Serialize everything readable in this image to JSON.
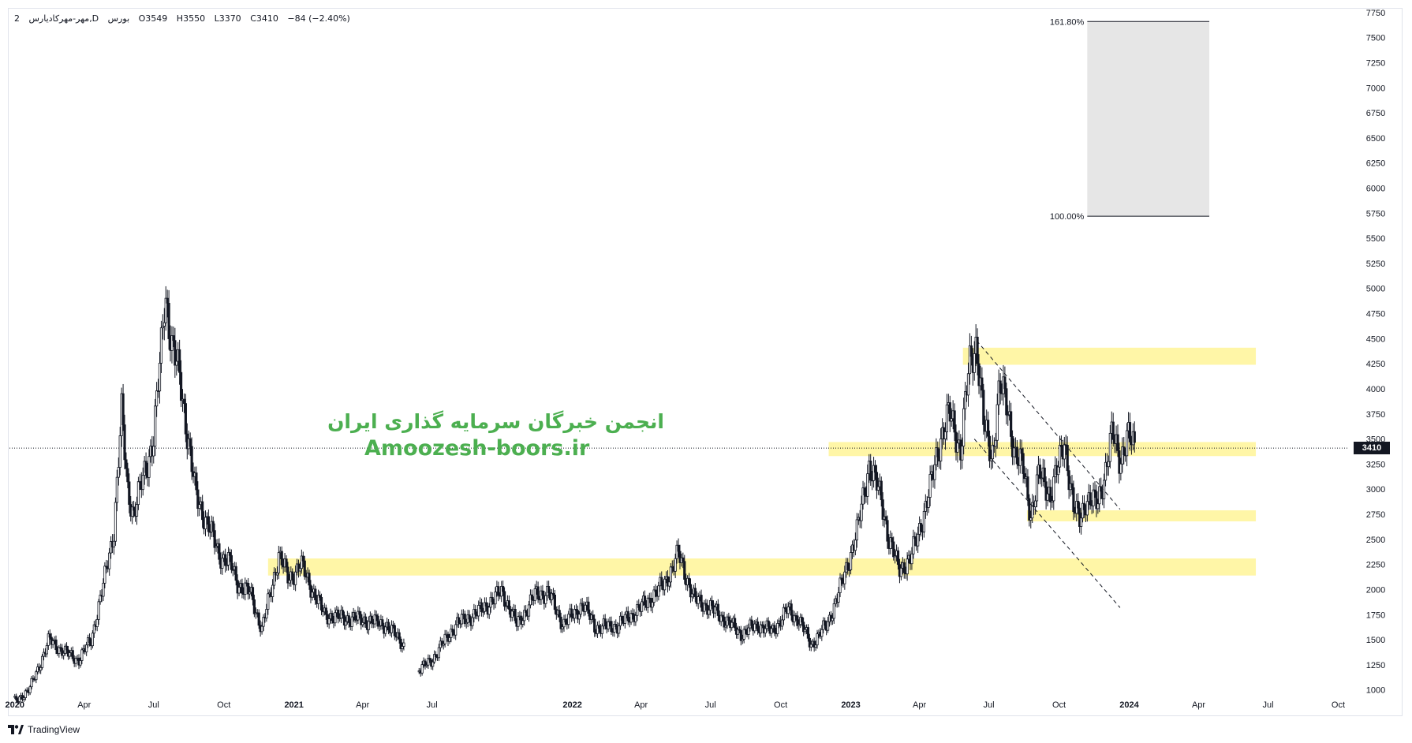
{
  "legend": {
    "symbol": "مهر-مهرکادیارس,D",
    "exchange": "بورس",
    "interval": "2",
    "open": "O3549",
    "high": "H3550",
    "low": "L3370",
    "close": "C3410",
    "change": "−84 (−2.40%)"
  },
  "watermark": {
    "line1": "انجمن خبرگان سرمایه گذاری ایران",
    "line2": "Amoozesh-boors.ir"
  },
  "brand": {
    "name": "TradingView",
    "icon": "tradingview-logo-icon"
  },
  "colors": {
    "candle": "#131722",
    "zone": "#fff59d",
    "fib_box": "#e6e6e6",
    "watermark": "#4caf50",
    "badge_bg": "#131722"
  },
  "chart_data": {
    "type": "candlestick",
    "y_axis": {
      "ticks": [
        1000,
        1250,
        1500,
        1750,
        2000,
        2250,
        2500,
        2750,
        3000,
        3250,
        3500,
        3750,
        4000,
        4250,
        4500,
        4750,
        5000,
        5250,
        5500,
        5750,
        6000,
        6250,
        6500,
        6750,
        7000,
        7250,
        7500,
        7750
      ],
      "range": [
        880,
        7780
      ],
      "side": "right"
    },
    "x_axis": {
      "range": [
        "2019-12-25",
        "2024-10-15"
      ],
      "ticks": [
        {
          "date": "2020-01-01",
          "label": "2020",
          "bold": true
        },
        {
          "date": "2020-04-01",
          "label": "Apr"
        },
        {
          "date": "2020-07-01",
          "label": "Jul"
        },
        {
          "date": "2020-10-01",
          "label": "Oct"
        },
        {
          "date": "2021-01-01",
          "label": "2021",
          "bold": true
        },
        {
          "date": "2021-04-01",
          "label": "Apr"
        },
        {
          "date": "2021-07-01",
          "label": "Jul"
        },
        {
          "date": "2022-01-01",
          "label": "2022",
          "bold": true
        },
        {
          "date": "2022-04-01",
          "label": "Apr"
        },
        {
          "date": "2022-07-01",
          "label": "Jul"
        },
        {
          "date": "2022-10-01",
          "label": "Oct"
        },
        {
          "date": "2023-01-01",
          "label": "2023",
          "bold": true
        },
        {
          "date": "2023-04-01",
          "label": "Apr"
        },
        {
          "date": "2023-07-01",
          "label": "Jul"
        },
        {
          "date": "2023-10-01",
          "label": "Oct"
        },
        {
          "date": "2024-01-01",
          "label": "2024",
          "bold": true
        },
        {
          "date": "2024-04-01",
          "label": "Apr"
        },
        {
          "date": "2024-07-01",
          "label": "Jul"
        },
        {
          "date": "2024-10-01",
          "label": "Oct"
        }
      ]
    },
    "last_price": 3410,
    "price_path": [
      [
        "2020-01-01",
        890
      ],
      [
        "2020-01-20",
        1000
      ],
      [
        "2020-02-05",
        1300
      ],
      [
        "2020-02-15",
        1500
      ],
      [
        "2020-03-05",
        1380
      ],
      [
        "2020-03-25",
        1300
      ],
      [
        "2020-04-10",
        1500
      ],
      [
        "2020-04-25",
        2000
      ],
      [
        "2020-05-10",
        2600
      ],
      [
        "2020-05-20",
        3750
      ],
      [
        "2020-05-28",
        3000
      ],
      [
        "2020-06-05",
        2750
      ],
      [
        "2020-06-20",
        3200
      ],
      [
        "2020-07-01",
        3500
      ],
      [
        "2020-07-10",
        4300
      ],
      [
        "2020-07-16",
        5000
      ],
      [
        "2020-07-25",
        4400
      ],
      [
        "2020-08-05",
        4100
      ],
      [
        "2020-08-15",
        3500
      ],
      [
        "2020-08-25",
        2950
      ],
      [
        "2020-09-10",
        2650
      ],
      [
        "2020-09-25",
        2350
      ],
      [
        "2020-10-10",
        2250
      ],
      [
        "2020-10-20",
        2050
      ],
      [
        "2020-11-05",
        1960
      ],
      [
        "2020-11-20",
        1600
      ],
      [
        "2020-12-05",
        2100
      ],
      [
        "2020-12-12",
        2350
      ],
      [
        "2020-12-25",
        2100
      ],
      [
        "2021-01-10",
        2250
      ],
      [
        "2021-01-25",
        2000
      ],
      [
        "2021-02-10",
        1750
      ],
      [
        "2021-03-01",
        1720
      ],
      [
        "2021-04-01",
        1700
      ],
      [
        "2021-05-01",
        1650
      ],
      [
        "2021-05-20",
        1500
      ],
      [
        "2021-06-15",
        1200
      ],
      [
        "2021-07-01",
        1300
      ],
      [
        "2021-08-01",
        1650
      ],
      [
        "2021-09-01",
        1780
      ],
      [
        "2021-10-01",
        1980
      ],
      [
        "2021-10-20",
        1650
      ],
      [
        "2021-11-15",
        1960
      ],
      [
        "2021-12-01",
        1960
      ],
      [
        "2021-12-20",
        1650
      ],
      [
        "2022-01-15",
        1850
      ],
      [
        "2022-02-01",
        1620
      ],
      [
        "2022-03-01",
        1640
      ],
      [
        "2022-04-01",
        1820
      ],
      [
        "2022-05-01",
        2050
      ],
      [
        "2022-05-20",
        2350
      ],
      [
        "2022-06-10",
        1900
      ],
      [
        "2022-07-01",
        1820
      ],
      [
        "2022-07-20",
        1700
      ],
      [
        "2022-08-10",
        1560
      ],
      [
        "2022-09-01",
        1650
      ],
      [
        "2022-09-20",
        1580
      ],
      [
        "2022-10-10",
        1800
      ],
      [
        "2022-10-25",
        1700
      ],
      [
        "2022-11-10",
        1450
      ],
      [
        "2022-12-01",
        1650
      ],
      [
        "2022-12-20",
        2050
      ],
      [
        "2023-01-10",
        2600
      ],
      [
        "2023-01-25",
        3250
      ],
      [
        "2023-02-10",
        2900
      ],
      [
        "2023-02-20",
        2500
      ],
      [
        "2023-03-05",
        2200
      ],
      [
        "2023-03-20",
        2300
      ],
      [
        "2023-04-01",
        2600
      ],
      [
        "2023-04-15",
        3000
      ],
      [
        "2023-04-28",
        3500
      ],
      [
        "2023-05-10",
        3750
      ],
      [
        "2023-05-25",
        3400
      ],
      [
        "2023-06-05",
        4200
      ],
      [
        "2023-06-15",
        4480
      ],
      [
        "2023-06-25",
        3600
      ],
      [
        "2023-07-05",
        3300
      ],
      [
        "2023-07-15",
        4050
      ],
      [
        "2023-07-25",
        3800
      ],
      [
        "2023-08-05",
        3350
      ],
      [
        "2023-08-15",
        3200
      ],
      [
        "2023-08-25",
        2750
      ],
      [
        "2023-09-05",
        3150
      ],
      [
        "2023-09-20",
        2950
      ],
      [
        "2023-10-01",
        3250
      ],
      [
        "2023-10-08",
        3500
      ],
      [
        "2023-10-20",
        2800
      ],
      [
        "2023-10-28",
        2700
      ],
      [
        "2023-11-05",
        2900
      ],
      [
        "2023-11-20",
        2850
      ],
      [
        "2023-12-01",
        3200
      ],
      [
        "2023-12-10",
        3550
      ],
      [
        "2023-12-20",
        3300
      ],
      [
        "2023-12-30",
        3520
      ],
      [
        "2024-01-08",
        3410
      ]
    ],
    "gaps": [
      [
        "2021-05-25",
        "2021-06-14"
      ]
    ],
    "zones": [
      {
        "x0": "2020-11-28",
        "x1": "2024-06-15",
        "y0": 2140,
        "y1": 2310
      },
      {
        "x0": "2022-12-03",
        "x1": "2024-06-15",
        "y0": 3330,
        "y1": 3470
      },
      {
        "x0": "2023-08-20",
        "x1": "2024-06-15",
        "y0": 2680,
        "y1": 2790
      },
      {
        "x0": "2023-05-28",
        "x1": "2024-06-15",
        "y0": 4240,
        "y1": 4410
      }
    ],
    "channel_lines": [
      {
        "from": [
          "2023-06-15",
          4480
        ],
        "to": [
          "2023-12-20",
          2800
        ]
      },
      {
        "from": [
          "2023-06-12",
          3500
        ],
        "to": [
          "2023-12-20",
          1820
        ]
      }
    ],
    "fib_projection": {
      "x0": "2023-11-07",
      "x1": "2024-04-15",
      "levels": [
        {
          "label": "161.80%",
          "value": 7660
        },
        {
          "label": "100.00%",
          "value": 5720
        }
      ]
    }
  }
}
